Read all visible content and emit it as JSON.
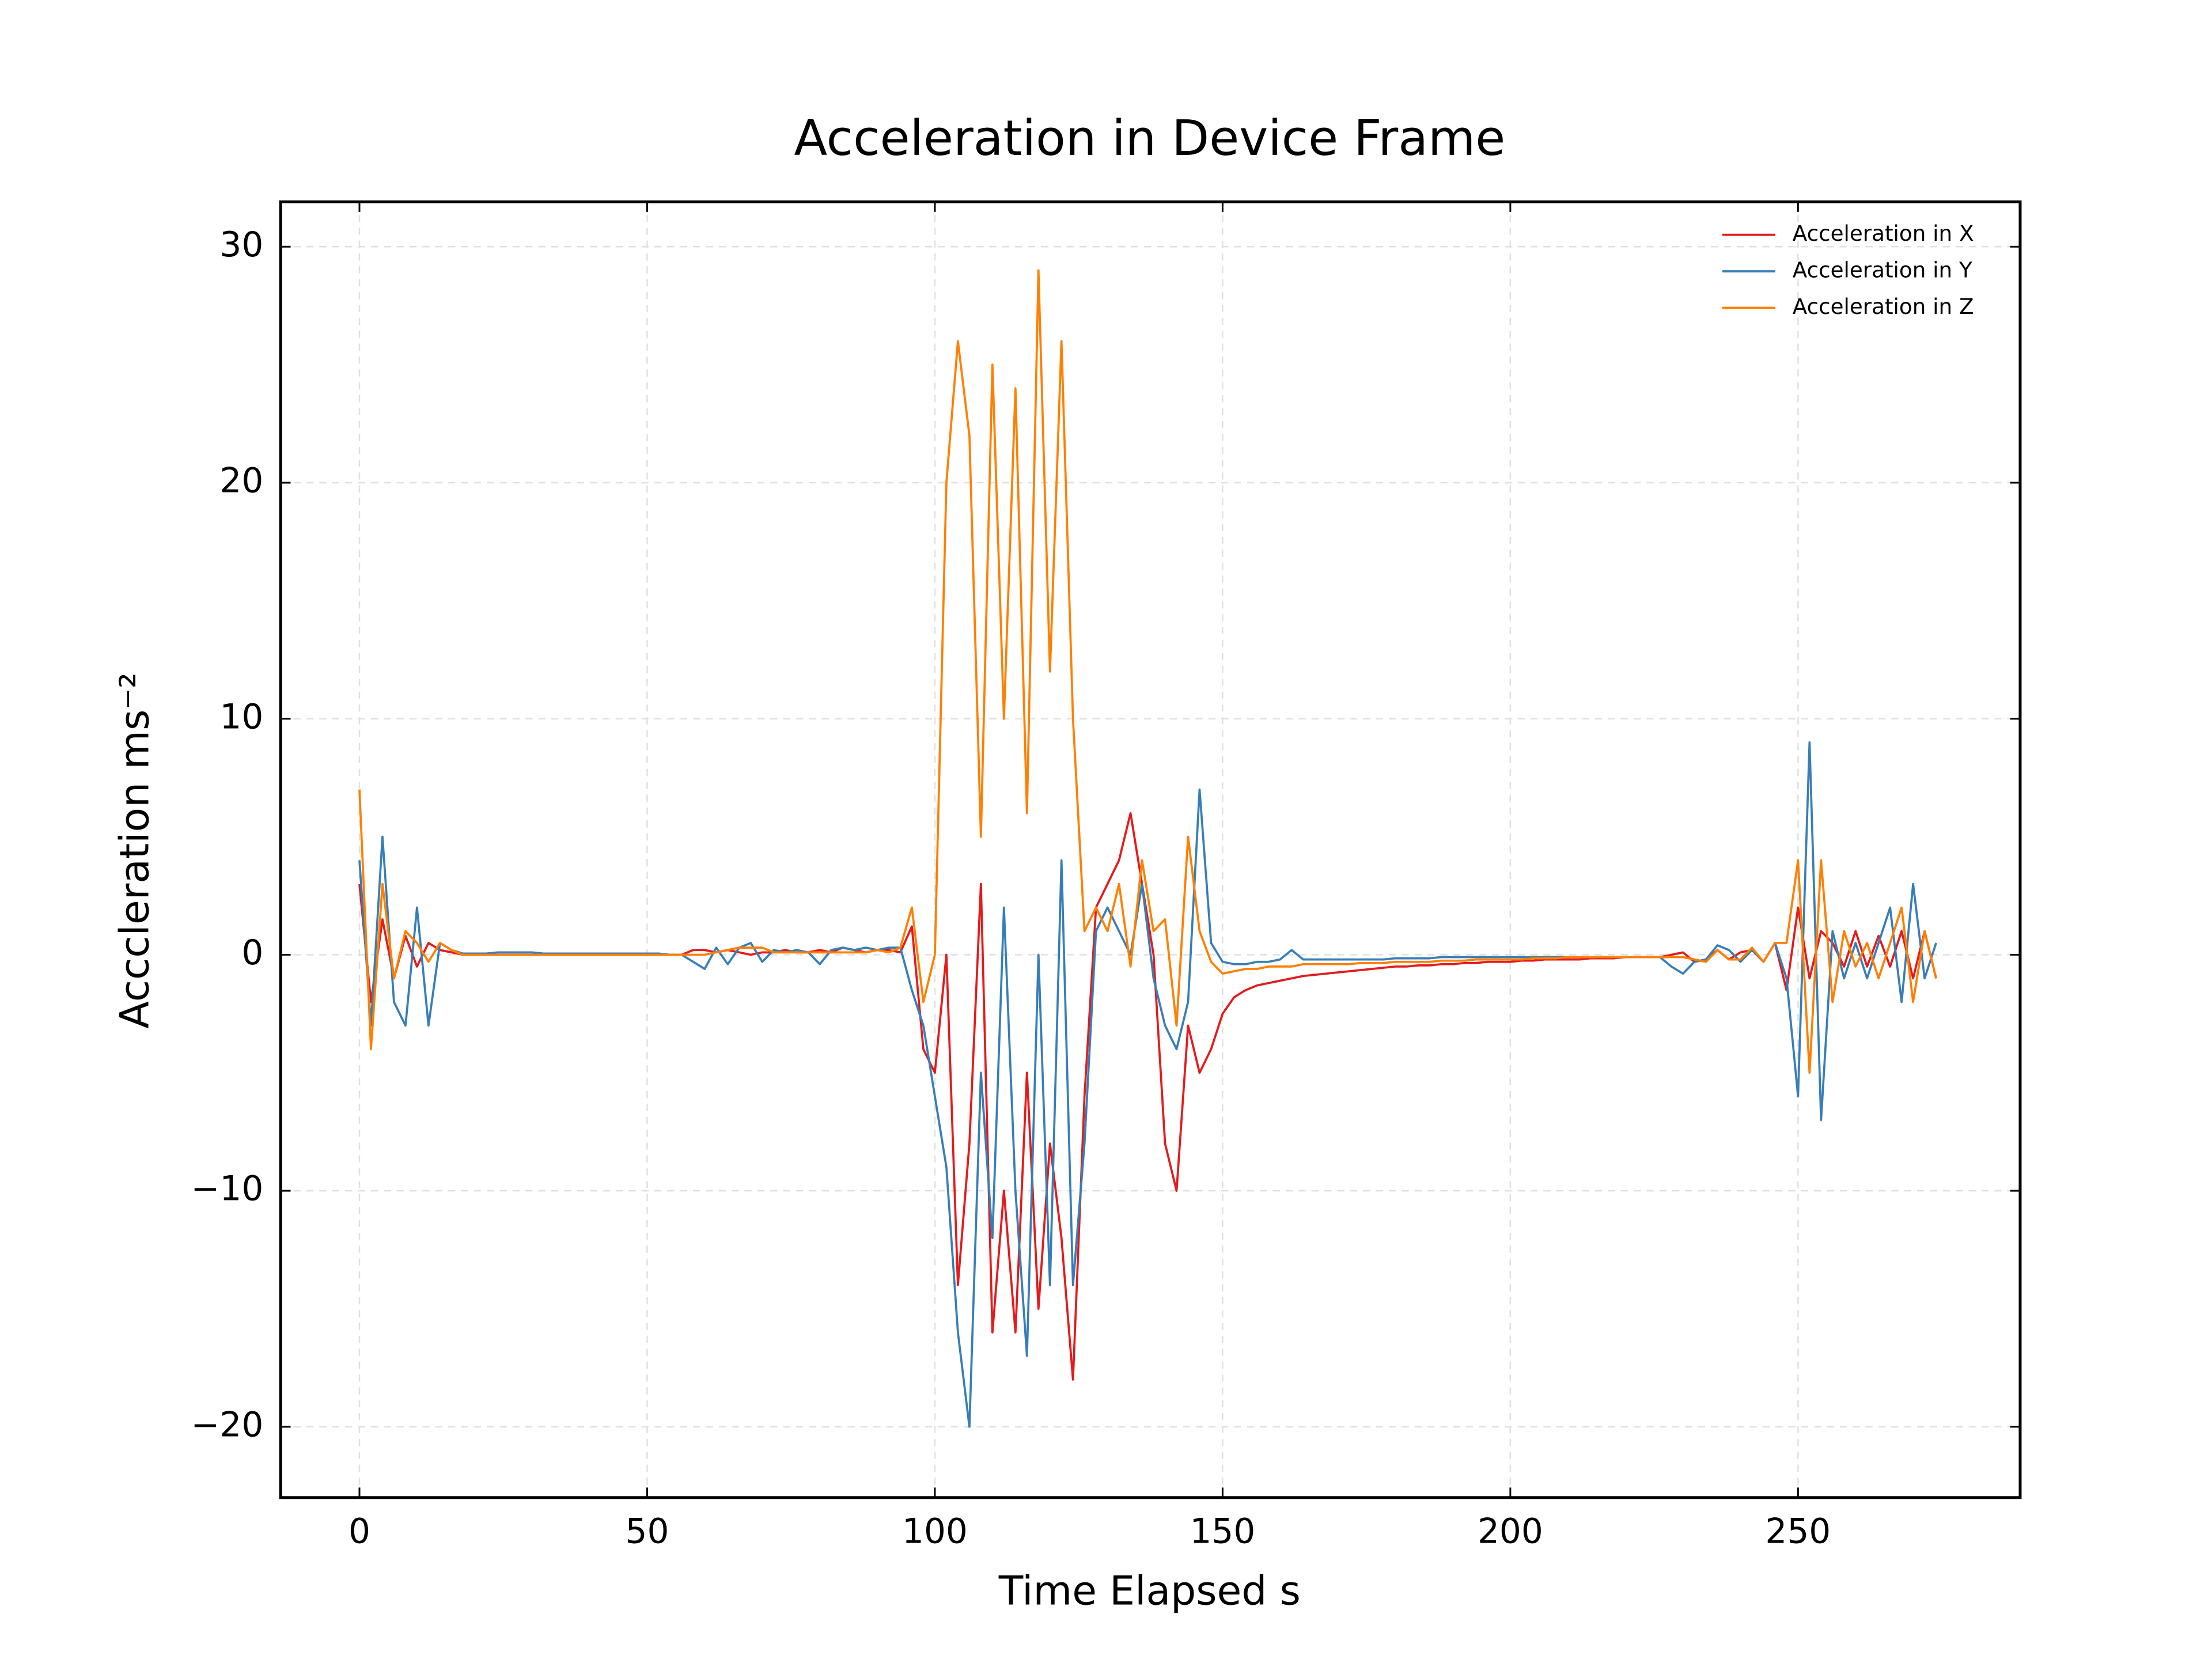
{
  "chart_data": {
    "type": "line",
    "title": "Acceleration in Device Frame",
    "xlabel": "Time Elapsed s",
    "ylabel": "Acccleration ms⁻²",
    "x": [
      0,
      2,
      4,
      6,
      8,
      10,
      12,
      14,
      16,
      18,
      20,
      22,
      24,
      26,
      28,
      30,
      32,
      34,
      36,
      38,
      40,
      42,
      44,
      46,
      48,
      50,
      52,
      54,
      56,
      58,
      60,
      62,
      64,
      66,
      68,
      70,
      72,
      74,
      76,
      78,
      80,
      82,
      84,
      86,
      88,
      90,
      92,
      94,
      96,
      98,
      100,
      102,
      104,
      106,
      108,
      110,
      112,
      114,
      116,
      118,
      120,
      122,
      124,
      126,
      128,
      130,
      132,
      134,
      136,
      138,
      140,
      142,
      144,
      146,
      148,
      150,
      152,
      154,
      156,
      158,
      160,
      162,
      164,
      166,
      168,
      170,
      172,
      174,
      176,
      178,
      180,
      182,
      184,
      186,
      188,
      190,
      192,
      194,
      196,
      198,
      200,
      202,
      204,
      206,
      208,
      210,
      212,
      214,
      216,
      218,
      220,
      222,
      224,
      226,
      228,
      230,
      232,
      234,
      236,
      238,
      240,
      242,
      244,
      246,
      248,
      250,
      252,
      254,
      256,
      258,
      260,
      262,
      264,
      266,
      268,
      270,
      272,
      274
    ],
    "series": [
      {
        "name": "Acceleration in X",
        "color": "#e41a1c",
        "values": [
          3,
          -2,
          1.5,
          -1,
          0.8,
          -0.5,
          0.5,
          0.2,
          0.1,
          0,
          0,
          0,
          0,
          0,
          0,
          0,
          0,
          0,
          0,
          0,
          0,
          0,
          0,
          0,
          0,
          0,
          0,
          0,
          0,
          0.2,
          0.2,
          0.1,
          0.2,
          0.1,
          0,
          0.1,
          0.1,
          0.2,
          0.1,
          0.1,
          0.2,
          0.1,
          0.3,
          0.2,
          0.1,
          0.2,
          0.2,
          0.1,
          1.2,
          -4,
          -5,
          0,
          -14,
          -8,
          3,
          -16,
          -10,
          -16,
          -5,
          -15,
          -8,
          -12,
          -18,
          -6,
          2,
          3,
          4,
          6,
          3,
          0,
          -8,
          -10,
          -3,
          -5,
          -4,
          -2.5,
          -1.8,
          -1.5,
          -1.3,
          -1.2,
          -1.1,
          -1,
          -0.9,
          -0.85,
          -0.8,
          -0.75,
          -0.7,
          -0.65,
          -0.6,
          -0.55,
          -0.5,
          -0.5,
          -0.45,
          -0.45,
          -0.4,
          -0.4,
          -0.35,
          -0.35,
          -0.3,
          -0.3,
          -0.3,
          -0.25,
          -0.25,
          -0.2,
          -0.2,
          -0.2,
          -0.2,
          -0.15,
          -0.15,
          -0.15,
          -0.1,
          -0.1,
          -0.1,
          -0.1,
          0,
          0.1,
          -0.3,
          -0.2,
          0.2,
          -0.2,
          0.1,
          0.2,
          -0.3,
          0.5,
          -1.5,
          2,
          -1,
          1,
          0.5,
          -0.5,
          1,
          -0.5,
          0.8,
          -0.5,
          1,
          -1,
          1,
          -1
        ]
      },
      {
        "name": "Acceleration in Y",
        "color": "#377eb8",
        "values": [
          4,
          -3,
          5,
          -2,
          -3,
          2,
          -3,
          0.5,
          0.2,
          0.05,
          0.05,
          0.05,
          0.1,
          0.1,
          0.1,
          0.1,
          0.05,
          0.05,
          0.05,
          0.05,
          0.05,
          0.05,
          0.05,
          0.05,
          0.05,
          0.05,
          0.05,
          0,
          0,
          -0.3,
          -0.6,
          0.3,
          -0.4,
          0.3,
          0.5,
          -0.3,
          0.2,
          0.1,
          0.2,
          0.1,
          -0.4,
          0.2,
          0.3,
          0.2,
          0.3,
          0.2,
          0.3,
          0.3,
          -1.5,
          -3,
          -6,
          -9,
          -16,
          -20,
          -5,
          -12,
          2,
          -10,
          -17,
          0,
          -14,
          4,
          -14,
          -8,
          1,
          2,
          1,
          0,
          3,
          -1,
          -3,
          -4,
          -2,
          7,
          0.5,
          -0.3,
          -0.4,
          -0.4,
          -0.3,
          -0.3,
          -0.2,
          0.2,
          -0.2,
          -0.2,
          -0.2,
          -0.2,
          -0.2,
          -0.2,
          -0.2,
          -0.2,
          -0.15,
          -0.15,
          -0.15,
          -0.15,
          -0.1,
          -0.1,
          -0.1,
          -0.1,
          -0.1,
          -0.1,
          -0.1,
          -0.1,
          -0.1,
          -0.1,
          -0.1,
          -0.1,
          -0.1,
          -0.1,
          -0.1,
          -0.1,
          -0.1,
          -0.1,
          -0.1,
          -0.1,
          -0.5,
          -0.8,
          -0.3,
          -0.2,
          0.4,
          0.2,
          -0.3,
          0.2,
          -0.3,
          0.5,
          -1,
          -6,
          9,
          -7,
          1,
          -1,
          0.5,
          -1,
          0.5,
          2,
          -2,
          3,
          -1,
          0.5
        ]
      },
      {
        "name": "Acceleration in Z",
        "color": "#ff7f00",
        "values": [
          7,
          -4,
          3,
          -1,
          1,
          0.5,
          -0.3,
          0.5,
          0.2,
          0,
          0,
          0,
          0,
          0,
          0,
          0,
          0,
          0,
          0,
          0,
          0,
          0,
          0,
          0,
          0,
          0,
          0,
          0,
          0,
          0,
          0,
          0.1,
          0.2,
          0.3,
          0.3,
          0.3,
          0.1,
          0.1,
          0.1,
          0.1,
          0.1,
          0.1,
          0.1,
          0.1,
          0.1,
          0.2,
          0.1,
          0.3,
          2,
          -2,
          0,
          20,
          26,
          22,
          5,
          25,
          10,
          24,
          6,
          29,
          12,
          26,
          10,
          1,
          2,
          1,
          3,
          -0.5,
          4,
          1,
          1.5,
          -3,
          5,
          1,
          -0.3,
          -0.8,
          -0.7,
          -0.6,
          -0.6,
          -0.5,
          -0.5,
          -0.5,
          -0.4,
          -0.4,
          -0.4,
          -0.4,
          -0.4,
          -0.35,
          -0.35,
          -0.35,
          -0.3,
          -0.3,
          -0.3,
          -0.3,
          -0.25,
          -0.25,
          -0.25,
          -0.2,
          -0.2,
          -0.2,
          -0.2,
          -0.2,
          -0.15,
          -0.15,
          -0.15,
          -0.1,
          -0.1,
          -0.1,
          -0.1,
          -0.1,
          -0.1,
          -0.1,
          -0.1,
          -0.1,
          -0.1,
          -0.1,
          -0.2,
          -0.3,
          0.2,
          -0.2,
          -0.2,
          0.3,
          -0.3,
          0.5,
          0.5,
          4,
          -5,
          4,
          -2,
          1,
          -0.5,
          0.5,
          -1,
          0.5,
          2,
          -2,
          1,
          -1
        ]
      }
    ],
    "xlim": [
      -13.7,
      288.6
    ],
    "ylim": [
      -23,
      31.9
    ],
    "xticks": [
      0,
      50,
      100,
      150,
      200,
      250
    ],
    "yticks": [
      {
        "value": -20,
        "label": "−20"
      },
      {
        "value": -10,
        "label": "−10"
      },
      0,
      10,
      20,
      30
    ],
    "grid": true,
    "legend": "upper right"
  }
}
